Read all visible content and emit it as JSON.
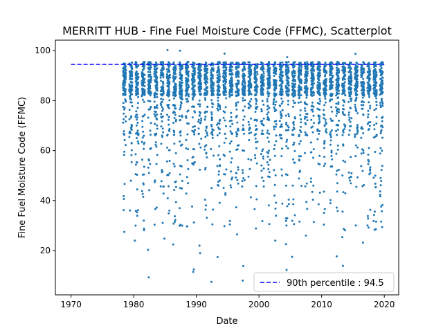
{
  "chart_data": {
    "type": "scatter",
    "title": "MERRITT HUB - Fine Fuel Moisture Code (FFMC), Scatterplot",
    "xlabel": "Date",
    "ylabel": "Fine Fuel Moisture Code (FFMC)",
    "xlim": [
      1967.5,
      2022.3
    ],
    "ylim": [
      2.3,
      104.2
    ],
    "xticks": [
      1970,
      1980,
      1990,
      2000,
      2010,
      2020
    ],
    "yticks": [
      20,
      40,
      60,
      80,
      100
    ],
    "grid": false,
    "legend_position": "lower-right",
    "reference_line": {
      "value": 94.5,
      "label": "90th percentile : 94.5",
      "color": "#0000ff",
      "style": "dashed",
      "x_range": [
        1970,
        2020
      ]
    },
    "series": [
      {
        "color": "#1f77b4",
        "year_range": [
          1978,
          2019
        ],
        "season_fraction": [
          0.3,
          0.78
        ],
        "points": [
          [
            1978.4,
            41.8
          ],
          [
            1978.5,
            27.5
          ],
          [
            1980.2,
            24.0
          ],
          [
            1980.3,
            30.0
          ],
          [
            1982.4,
            9.3
          ],
          [
            1982.3,
            20.3
          ],
          [
            1984.9,
            24.8
          ],
          [
            1989.5,
            11.5
          ],
          [
            1989.6,
            12.5
          ],
          [
            1990.5,
            22.0
          ],
          [
            1990.6,
            19.0
          ],
          [
            1992.4,
            7.5
          ],
          [
            1993.4,
            17.4
          ],
          [
            1997.4,
            8.0
          ],
          [
            1997.5,
            13.8
          ],
          [
            2004.4,
            12.3
          ],
          [
            2004.3,
            22.6
          ],
          [
            2005.3,
            17.5
          ],
          [
            2012.4,
            17.7
          ],
          [
            2013.4,
            13.9
          ],
          [
            2013.3,
            25.4
          ],
          [
            2019.4,
            49.0
          ],
          [
            2002.6,
            24.0
          ],
          [
            2007.5,
            26.0
          ],
          [
            1996.5,
            26.5
          ],
          [
            1987.4,
            100.0
          ],
          [
            1985.4,
            100.2
          ],
          [
            1994.5,
            98.8
          ],
          [
            2015.4,
            98.7
          ],
          [
            2004.5,
            97.4
          ],
          [
            2019.5,
            84.8
          ],
          [
            1986.3,
            22.5
          ],
          [
            1999.3,
            36.6
          ],
          [
            2010.5,
            36.6
          ],
          [
            2016.6,
            23.2
          ]
        ]
      }
    ]
  }
}
